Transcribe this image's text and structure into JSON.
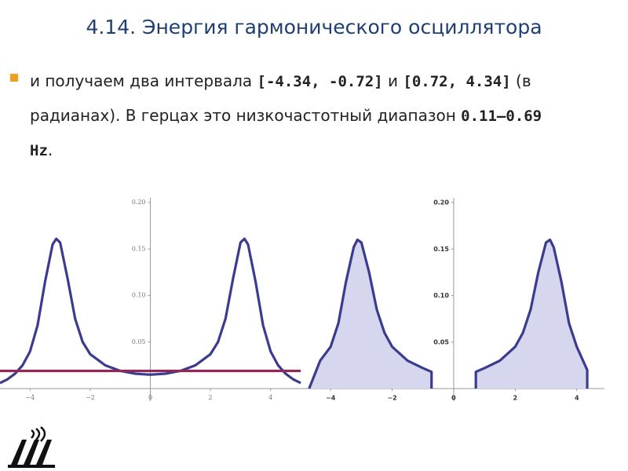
{
  "title": "4.14. Энергия гармонического осциллятора",
  "bullet": {
    "segments": [
      {
        "text": "и получаем два интервала ",
        "bold": false
      },
      {
        "text": "[-4.34, -0.72]",
        "bold": true
      },
      {
        "text": " и ",
        "bold": false
      },
      {
        "text": "[0.72, 4.34]",
        "bold": true
      },
      {
        "text": " (в радианах). В герцах это низкочастотный диапазон ",
        "bold": false
      },
      {
        "text": "0.11–0.69 Hz",
        "bold": true
      },
      {
        "text": ".",
        "bold": false
      }
    ]
  },
  "chart_data": [
    {
      "type": "line",
      "xlim": [
        -5,
        5
      ],
      "ylim": [
        0,
        0.2
      ],
      "xticks": [
        {
          "value": -4,
          "label": "−4"
        },
        {
          "value": -2,
          "label": "−2"
        },
        0,
        2,
        4
      ],
      "yticks": [
        0.05,
        {
          "value": 0.1,
          "label": "0.10"
        },
        0.15,
        {
          "value": 0.2,
          "label": "0.20"
        }
      ],
      "series": [
        {
          "color": "#3b3b8f",
          "x": [
            -5,
            -4.75,
            -4.5,
            -4.25,
            -4,
            -3.75,
            -3.5,
            -3.25,
            -3.13,
            -3,
            -2.75,
            -2.5,
            -2.25,
            -2,
            -1.5,
            -1,
            -0.5,
            0,
            0.5,
            1,
            1.5,
            2,
            2.25,
            2.5,
            2.75,
            3,
            3.13,
            3.25,
            3.5,
            3.75,
            4,
            4.25,
            4.5,
            4.75,
            5
          ],
          "values": [
            0.006,
            0.01,
            0.016,
            0.025,
            0.04,
            0.068,
            0.115,
            0.155,
            0.161,
            0.157,
            0.118,
            0.075,
            0.05,
            0.037,
            0.025,
            0.019,
            0.016,
            0.015,
            0.016,
            0.019,
            0.025,
            0.037,
            0.05,
            0.075,
            0.118,
            0.157,
            0.161,
            0.155,
            0.115,
            0.068,
            0.04,
            0.025,
            0.016,
            0.01,
            0.006
          ]
        },
        {
          "color": "#8e2a5a",
          "x": [
            -5,
            5
          ],
          "values": [
            0.019,
            0.019
          ]
        }
      ]
    },
    {
      "type": "area",
      "xlim": [
        -5,
        4.9
      ],
      "ylim": [
        0,
        0.2
      ],
      "xticks": [
        {
          "value": -4,
          "label": "−4"
        },
        {
          "value": -2,
          "label": "−2"
        },
        0,
        2,
        4
      ],
      "yticks": [
        0.05,
        {
          "value": 0.1,
          "label": "0.10"
        },
        0.15,
        {
          "value": 0.2,
          "label": "0.20"
        }
      ],
      "series": [
        {
          "color": "#3b3b8f",
          "fill": "#d6d6ee",
          "x": [
            -4.7,
            -4.34,
            -4,
            -3.75,
            -3.5,
            -3.25,
            -3.13,
            -3,
            -2.75,
            -2.5,
            -2.25,
            -2,
            -1.5,
            -1,
            -0.72,
            0,
            0.72,
            1,
            1.5,
            2,
            2.25,
            2.5,
            2.75,
            3,
            3.13,
            3.25,
            3.5,
            3.75,
            4,
            4.34
          ],
          "values": [
            0,
            0.03,
            0.045,
            0.07,
            0.115,
            0.152,
            0.16,
            0.157,
            0.125,
            0.085,
            0.06,
            0.045,
            0.03,
            0.022,
            0.018,
            null,
            0.018,
            0.022,
            0.03,
            0.045,
            0.06,
            0.085,
            0.125,
            0.157,
            0.16,
            0.152,
            0.115,
            0.07,
            0.045,
            0.02
          ]
        }
      ]
    }
  ]
}
